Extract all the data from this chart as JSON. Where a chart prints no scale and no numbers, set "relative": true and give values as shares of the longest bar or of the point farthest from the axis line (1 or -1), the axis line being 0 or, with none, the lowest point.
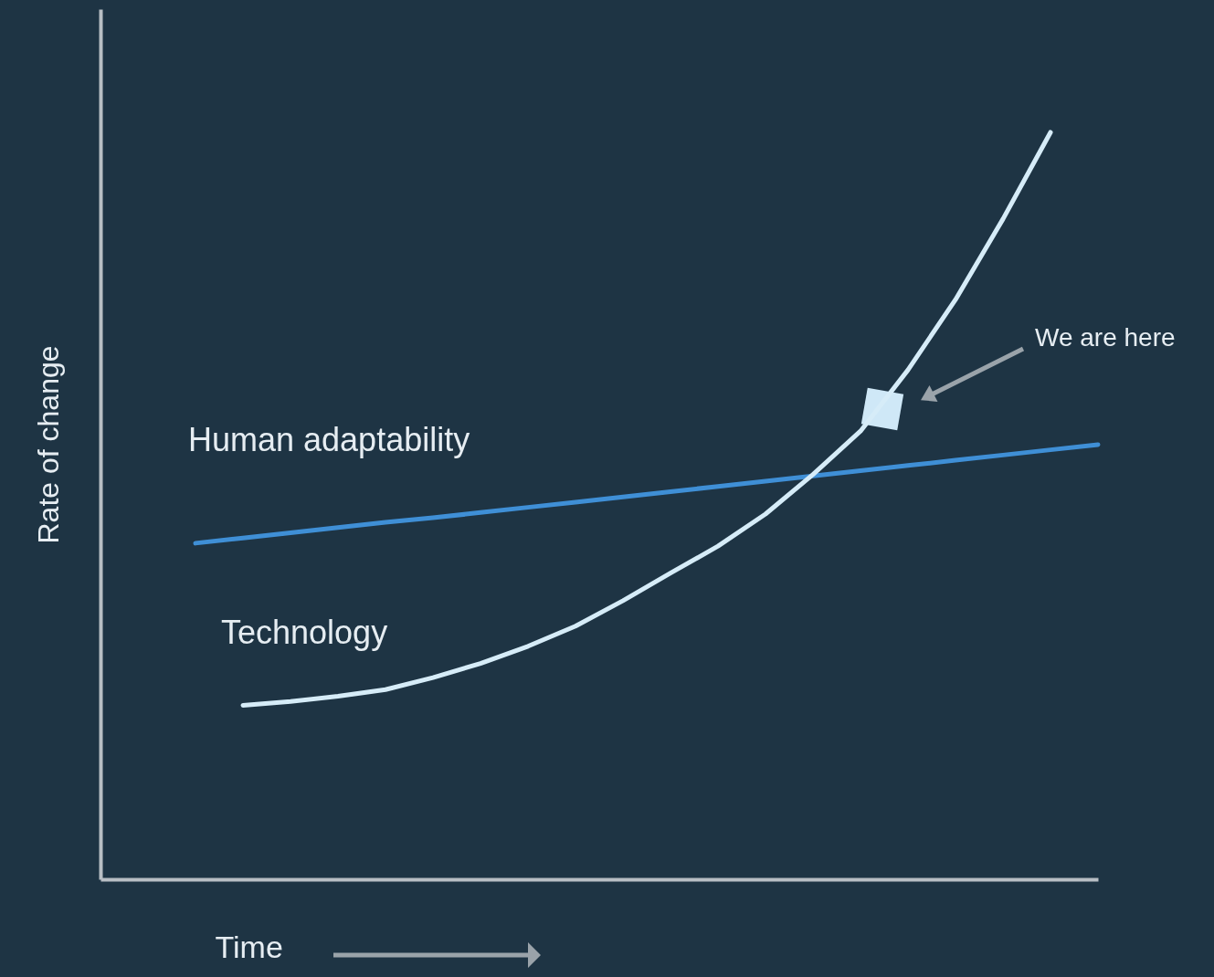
{
  "chart_data": {
    "type": "line",
    "relative": true,
    "xlabel": "Time",
    "ylabel": "Rate of change",
    "legend": false,
    "grid": false,
    "marker": "none",
    "line_style": "solid",
    "categories": [
      null,
      null,
      null,
      null,
      null,
      null,
      null,
      null,
      null,
      null,
      null,
      null,
      null,
      null,
      null,
      null,
      null,
      null,
      null,
      null,
      null,
      null
    ],
    "series": [
      {
        "name": "Human adaptability",
        "color": "#3f8fd6",
        "values": [
          null,
          null,
          0.45,
          0.457,
          0.464,
          0.471,
          0.478,
          0.484,
          0.491,
          0.498,
          0.505,
          0.512,
          0.519,
          0.526,
          0.533,
          0.54,
          0.547,
          0.554,
          0.561,
          0.568,
          0.575,
          0.582
        ]
      },
      {
        "name": "Technology",
        "color": "#d6ecf8",
        "values": [
          null,
          null,
          null,
          0.233,
          0.238,
          0.245,
          0.254,
          0.27,
          0.289,
          0.312,
          0.339,
          0.373,
          0.41,
          0.446,
          0.489,
          0.542,
          0.6,
          0.682,
          0.776,
          0.884,
          1,
          null
        ]
      }
    ],
    "annotations": [
      "We are here"
    ]
  }
}
